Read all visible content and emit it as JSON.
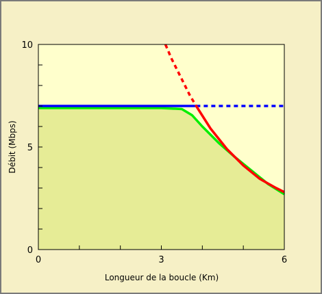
{
  "chart_data": {
    "type": "line",
    "title": "",
    "xlabel": "Longueur de la boucle (Km)",
    "ylabel": "Débit (Mbps)",
    "xlim": [
      0,
      6
    ],
    "ylim": [
      0,
      10
    ],
    "x_ticks": [
      0,
      3,
      6
    ],
    "x_minor_ticks": [
      1,
      2,
      4,
      5
    ],
    "y_ticks": [
      0,
      5,
      10
    ],
    "y_minor_ticks": [
      1,
      2,
      3,
      4,
      6,
      7,
      8,
      9
    ],
    "grid": false,
    "legend": "none",
    "series": [
      {
        "color": "#0000ff",
        "style": "solid",
        "x": [
          0,
          3.85
        ],
        "y": [
          7.0,
          7.0
        ]
      },
      {
        "color": "#0000ff",
        "style": "dashed",
        "x": [
          3.85,
          6.0
        ],
        "y": [
          7.0,
          7.0
        ]
      },
      {
        "color": "#ff0000",
        "style": "dashed",
        "x": [
          3.1,
          3.25,
          3.4,
          3.55,
          3.7,
          3.85
        ],
        "y": [
          10.0,
          9.3,
          8.7,
          8.1,
          7.5,
          7.0
        ]
      },
      {
        "color": "#ff0000",
        "style": "solid",
        "x": [
          3.85,
          4.2,
          4.6,
          5.0,
          5.4,
          5.8,
          6.0
        ],
        "y": [
          7.0,
          5.9,
          4.9,
          4.1,
          3.45,
          3.0,
          2.8
        ]
      },
      {
        "color": "#00ee00",
        "style": "solid",
        "fill": "#e6ec96",
        "x": [
          0,
          1.0,
          2.0,
          3.0,
          3.5,
          3.75,
          4.0,
          4.4,
          4.8,
          5.2,
          5.6,
          6.0
        ],
        "y": [
          6.9,
          6.9,
          6.9,
          6.9,
          6.85,
          6.55,
          6.0,
          5.2,
          4.5,
          3.85,
          3.2,
          2.7
        ]
      }
    ]
  }
}
